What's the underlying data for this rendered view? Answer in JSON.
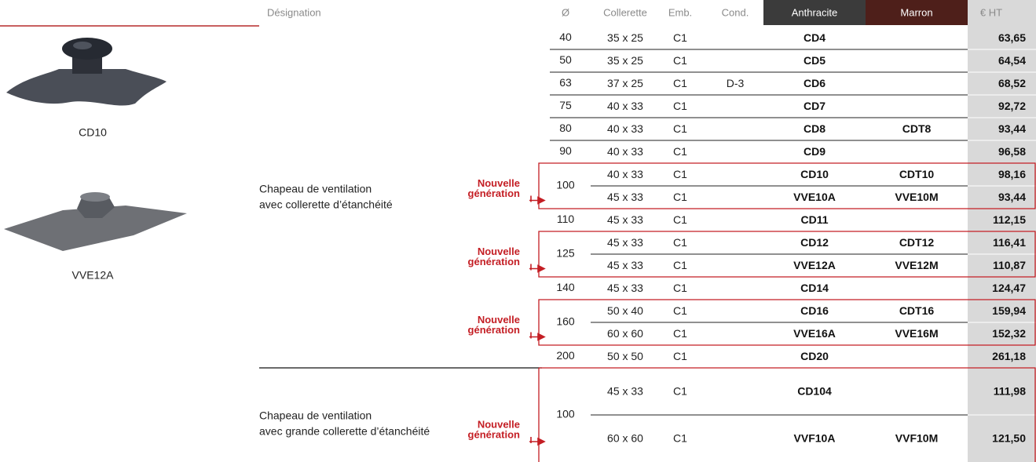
{
  "header": {
    "designation": "Désignation",
    "diameter": "Ø",
    "collerette": "Collerette",
    "emb": "Emb.",
    "cond": "Cond.",
    "anthracite": "Anthracite",
    "marron": "Marron",
    "price": "€ HT"
  },
  "products": [
    {
      "caption": "CD10"
    },
    {
      "caption": "VVE12A"
    }
  ],
  "new_label": [
    "Nouvelle",
    "génération"
  ],
  "sections": [
    {
      "designation": [
        "Chapeau de ventilation",
        "avec collerette d’étanchéité"
      ],
      "row_height": 29,
      "rows": [
        {
          "diameter": "40",
          "variants": [
            {
              "collerette": "35 x 25",
              "emb": "C1",
              "anthracite": "CD4",
              "price": "63,65"
            }
          ]
        },
        {
          "diameter": "50",
          "variants": [
            {
              "collerette": "35 x 25",
              "emb": "C1",
              "anthracite": "CD5",
              "price": "64,54"
            }
          ]
        },
        {
          "diameter": "63",
          "variants": [
            {
              "collerette": "37 x 25",
              "emb": "C1",
              "cond": "D-3",
              "anthracite": "CD6",
              "price": "68,52"
            }
          ]
        },
        {
          "diameter": "75",
          "variants": [
            {
              "collerette": "40 x 33",
              "emb": "C1",
              "anthracite": "CD7",
              "price": "92,72"
            }
          ]
        },
        {
          "diameter": "80",
          "variants": [
            {
              "collerette": "40 x 33",
              "emb": "C1",
              "anthracite": "CD8",
              "marron": "CDT8",
              "price": "93,44"
            }
          ]
        },
        {
          "diameter": "90",
          "variants": [
            {
              "collerette": "40 x 33",
              "emb": "C1",
              "anthracite": "CD9",
              "price": "96,58"
            }
          ]
        },
        {
          "diameter": "100",
          "new": true,
          "variants": [
            {
              "collerette": "40 x 33",
              "emb": "C1",
              "anthracite": "CD10",
              "marron": "CDT10",
              "price": "98,16"
            },
            {
              "collerette": "45 x 33",
              "emb": "C1",
              "anthracite": "VVE10A",
              "marron": "VVE10M",
              "price": "93,44"
            }
          ]
        },
        {
          "diameter": "110",
          "variants": [
            {
              "collerette": "45 x 33",
              "emb": "C1",
              "anthracite": "CD11",
              "price": "112,15"
            }
          ]
        },
        {
          "diameter": "125",
          "new": true,
          "variants": [
            {
              "collerette": "45 x 33",
              "emb": "C1",
              "anthracite": "CD12",
              "marron": "CDT12",
              "price": "116,41"
            },
            {
              "collerette": "45 x 33",
              "emb": "C1",
              "anthracite": "VVE12A",
              "marron": "VVE12M",
              "price": "110,87"
            }
          ]
        },
        {
          "diameter": "140",
          "variants": [
            {
              "collerette": "45 x 33",
              "emb": "C1",
              "anthracite": "CD14",
              "price": "124,47"
            }
          ]
        },
        {
          "diameter": "160",
          "new": true,
          "variants": [
            {
              "collerette": "50 x 40",
              "emb": "C1",
              "anthracite": "CD16",
              "marron": "CDT16",
              "price": "159,94"
            },
            {
              "collerette": "60 x 60",
              "emb": "C1",
              "anthracite": "VVE16A",
              "marron": "VVE16M",
              "price": "152,32"
            }
          ]
        },
        {
          "diameter": "200",
          "variants": [
            {
              "collerette": "50 x 50",
              "emb": "C1",
              "anthracite": "CD20",
              "price": "261,18"
            }
          ]
        }
      ]
    },
    {
      "designation": [
        "Chapeau de ventilation",
        "avec grande collerette d’étanchéité"
      ],
      "row_height": 60,
      "rows": [
        {
          "diameter": "100",
          "new": true,
          "variants": [
            {
              "collerette": "45 x 33",
              "emb": "C1",
              "anthracite": "CD104",
              "price": "111,98"
            },
            {
              "collerette": "60 x 60",
              "emb": "C1",
              "anthracite": "VVF10A",
              "marron": "VVF10M",
              "price": "121,50"
            }
          ]
        }
      ]
    }
  ]
}
